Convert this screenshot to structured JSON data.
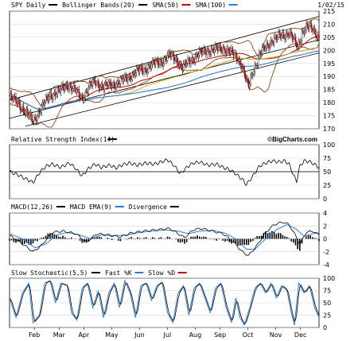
{
  "chart_data": [
    {
      "type": "candlestick",
      "title": "SPY Daily",
      "date": "1/02/15",
      "legend": [
        {
          "name": "SPY Daily",
          "color": "#000000"
        },
        {
          "name": "Bollinger Bands(20)",
          "color": "#000000"
        },
        {
          "name": "SMA(50)",
          "color": "#c00000"
        },
        {
          "name": "SMA(100)",
          "color": "#2a7fd4"
        }
      ],
      "ylim": [
        170,
        215
      ],
      "y_ticks": [
        "215",
        "210",
        "205",
        "200",
        "195",
        "190",
        "185",
        "180",
        "175",
        "170"
      ],
      "x_labels": [
        "Feb",
        "Mar",
        "Apr",
        "May",
        "Jun",
        "Jul",
        "Aug",
        "Sep",
        "Oct",
        "Nov",
        "Dec"
      ],
      "price_anchors": [
        [
          0,
          182
        ],
        [
          8,
          180
        ],
        [
          16,
          176
        ],
        [
          22,
          173
        ],
        [
          30,
          178
        ],
        [
          38,
          183
        ],
        [
          46,
          184
        ],
        [
          54,
          187
        ],
        [
          60,
          185
        ],
        [
          68,
          182
        ],
        [
          75,
          186
        ],
        [
          80,
          188
        ],
        [
          88,
          186
        ],
        [
          96,
          187
        ],
        [
          104,
          188
        ],
        [
          112,
          190
        ],
        [
          120,
          192
        ],
        [
          128,
          193
        ],
        [
          136,
          195
        ],
        [
          144,
          196
        ],
        [
          150,
          198
        ],
        [
          156,
          197
        ],
        [
          162,
          193
        ],
        [
          168,
          196
        ],
        [
          176,
          198
        ],
        [
          184,
          200
        ],
        [
          192,
          200
        ],
        [
          200,
          201
        ],
        [
          208,
          199
        ],
        [
          214,
          197
        ],
        [
          218,
          194
        ],
        [
          222,
          188
        ],
        [
          224,
          186
        ],
        [
          228,
          192
        ],
        [
          234,
          198
        ],
        [
          240,
          201
        ],
        [
          246,
          204
        ],
        [
          252,
          205
        ],
        [
          258,
          206
        ],
        [
          262,
          207
        ],
        [
          266,
          204
        ],
        [
          270,
          201
        ],
        [
          274,
          207
        ],
        [
          278,
          209
        ],
        [
          284,
          208
        ],
        [
          290,
          205
        ]
      ]
    },
    {
      "type": "line",
      "title": "Relative Strength Index(14)",
      "watermark": "©BigCharts.com",
      "ylim": [
        0,
        100
      ],
      "y_ticks": [
        "100",
        "75",
        "50",
        "25",
        "0"
      ],
      "reference_line": 50,
      "anchors": [
        [
          0,
          50
        ],
        [
          8,
          44
        ],
        [
          16,
          36
        ],
        [
          22,
          30
        ],
        [
          28,
          48
        ],
        [
          34,
          60
        ],
        [
          40,
          64
        ],
        [
          48,
          58
        ],
        [
          56,
          66
        ],
        [
          62,
          56
        ],
        [
          68,
          42
        ],
        [
          74,
          56
        ],
        [
          80,
          64
        ],
        [
          86,
          58
        ],
        [
          94,
          62
        ],
        [
          100,
          57
        ],
        [
          106,
          63
        ],
        [
          112,
          66
        ],
        [
          120,
          62
        ],
        [
          128,
          66
        ],
        [
          136,
          64
        ],
        [
          142,
          68
        ],
        [
          148,
          72
        ],
        [
          154,
          62
        ],
        [
          160,
          46
        ],
        [
          166,
          58
        ],
        [
          172,
          66
        ],
        [
          178,
          68
        ],
        [
          186,
          62
        ],
        [
          194,
          64
        ],
        [
          200,
          58
        ],
        [
          206,
          54
        ],
        [
          212,
          46
        ],
        [
          218,
          36
        ],
        [
          222,
          26
        ],
        [
          228,
          42
        ],
        [
          234,
          60
        ],
        [
          240,
          66
        ],
        [
          246,
          70
        ],
        [
          252,
          68
        ],
        [
          258,
          70
        ],
        [
          262,
          64
        ],
        [
          266,
          44
        ],
        [
          269,
          32
        ],
        [
          272,
          60
        ],
        [
          276,
          70
        ],
        [
          282,
          68
        ],
        [
          290,
          58
        ]
      ]
    },
    {
      "type": "line",
      "title": "MACD(12,26)",
      "legend": [
        {
          "name": "MACD(12,26)",
          "color": "#000000"
        },
        {
          "name": "MACD EMA(9)",
          "color": "#2a7fd4"
        },
        {
          "name": "Divergence",
          "color": "#000000"
        }
      ],
      "ylim": [
        -4,
        4
      ],
      "y_ticks": [
        "4",
        "2",
        "0",
        "-2",
        "-4"
      ],
      "macd_anchors": [
        [
          0,
          0.5
        ],
        [
          10,
          -0.5
        ],
        [
          22,
          -2.0
        ],
        [
          30,
          -1.0
        ],
        [
          40,
          1.0
        ],
        [
          50,
          1.2
        ],
        [
          62,
          0.8
        ],
        [
          72,
          -0.5
        ],
        [
          82,
          0.8
        ],
        [
          92,
          0.6
        ],
        [
          104,
          0.3
        ],
        [
          114,
          0.9
        ],
        [
          126,
          1.2
        ],
        [
          138,
          1.4
        ],
        [
          150,
          1.6
        ],
        [
          158,
          0.8
        ],
        [
          164,
          0.2
        ],
        [
          172,
          1.4
        ],
        [
          180,
          1.6
        ],
        [
          190,
          1.2
        ],
        [
          200,
          0.8
        ],
        [
          210,
          -0.5
        ],
        [
          218,
          -2.0
        ],
        [
          224,
          -2.6
        ],
        [
          232,
          -1.0
        ],
        [
          240,
          1.0
        ],
        [
          248,
          2.2
        ],
        [
          256,
          2.6
        ],
        [
          262,
          2.2
        ],
        [
          268,
          0.5
        ],
        [
          272,
          -0.8
        ],
        [
          278,
          1.0
        ],
        [
          284,
          1.2
        ],
        [
          290,
          0.6
        ]
      ],
      "signal_anchors": [
        [
          0,
          0.8
        ],
        [
          12,
          0.0
        ],
        [
          24,
          -1.4
        ],
        [
          34,
          -0.8
        ],
        [
          44,
          0.6
        ],
        [
          54,
          1.0
        ],
        [
          66,
          0.6
        ],
        [
          76,
          0.0
        ],
        [
          86,
          0.6
        ],
        [
          98,
          0.5
        ],
        [
          110,
          0.6
        ],
        [
          122,
          1.0
        ],
        [
          134,
          1.2
        ],
        [
          146,
          1.4
        ],
        [
          158,
          1.2
        ],
        [
          168,
          0.8
        ],
        [
          178,
          1.2
        ],
        [
          190,
          1.3
        ],
        [
          202,
          0.9
        ],
        [
          212,
          0.0
        ],
        [
          222,
          -1.6
        ],
        [
          230,
          -1.6
        ],
        [
          240,
          0.0
        ],
        [
          250,
          1.4
        ],
        [
          260,
          2.2
        ],
        [
          268,
          1.6
        ],
        [
          276,
          0.4
        ],
        [
          284,
          0.8
        ],
        [
          290,
          0.9
        ]
      ]
    },
    {
      "type": "line",
      "title": "Slow Stochastic(5,5)",
      "legend": [
        {
          "name": "Slow Stochastic(5,5)",
          "color": "#000000"
        },
        {
          "name": "Fast %K",
          "color": "#2a7fd4"
        },
        {
          "name": "Slow %D",
          "color": "#c00000"
        }
      ],
      "ylim": [
        0,
        100
      ],
      "y_ticks": [
        "100",
        "75",
        "50",
        "25",
        "0"
      ],
      "anchors": [
        [
          0,
          60
        ],
        [
          6,
          20
        ],
        [
          12,
          70
        ],
        [
          18,
          90
        ],
        [
          22,
          10
        ],
        [
          28,
          25
        ],
        [
          33,
          90
        ],
        [
          38,
          95
        ],
        [
          43,
          50
        ],
        [
          48,
          90
        ],
        [
          54,
          85
        ],
        [
          58,
          30
        ],
        [
          63,
          15
        ],
        [
          68,
          80
        ],
        [
          73,
          90
        ],
        [
          78,
          40
        ],
        [
          83,
          75
        ],
        [
          88,
          20
        ],
        [
          93,
          70
        ],
        [
          98,
          90
        ],
        [
          103,
          40
        ],
        [
          108,
          95
        ],
        [
          113,
          70
        ],
        [
          118,
          20
        ],
        [
          123,
          85
        ],
        [
          128,
          90
        ],
        [
          133,
          55
        ],
        [
          138,
          85
        ],
        [
          143,
          92
        ],
        [
          148,
          30
        ],
        [
          153,
          10
        ],
        [
          158,
          70
        ],
        [
          163,
          85
        ],
        [
          168,
          25
        ],
        [
          173,
          80
        ],
        [
          178,
          90
        ],
        [
          183,
          60
        ],
        [
          188,
          30
        ],
        [
          193,
          80
        ],
        [
          198,
          90
        ],
        [
          203,
          40
        ],
        [
          208,
          10
        ],
        [
          212,
          60
        ],
        [
          216,
          20
        ],
        [
          220,
          5
        ],
        [
          225,
          40
        ],
        [
          230,
          80
        ],
        [
          235,
          90
        ],
        [
          240,
          70
        ],
        [
          245,
          90
        ],
        [
          250,
          60
        ],
        [
          255,
          85
        ],
        [
          260,
          75
        ],
        [
          264,
          30
        ],
        [
          267,
          5
        ],
        [
          271,
          90
        ],
        [
          276,
          70
        ],
        [
          281,
          85
        ],
        [
          286,
          40
        ],
        [
          290,
          20
        ]
      ]
    }
  ]
}
